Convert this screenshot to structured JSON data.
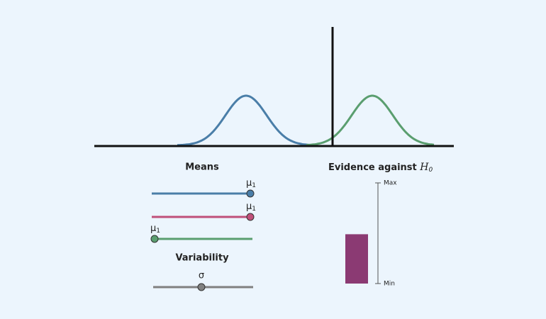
{
  "means_title": "Means",
  "mean_sliders": [
    {
      "symbol": "μ",
      "subscript": "1",
      "color": "#4a7ea8"
    },
    {
      "symbol": "μ",
      "subscript": "1",
      "color": "#c0507a"
    },
    {
      "symbol": "μ",
      "subscript": "1",
      "color": "#5a9e6f"
    }
  ],
  "variability_title": "Variability",
  "variability_slider": {
    "symbol": "σ"
  },
  "evidence": {
    "title": "Evidence against",
    "hypothesis": {
      "symbol": "H",
      "subscript": "0"
    },
    "value": 0.49,
    "color": "#8b3a73",
    "ticks": [
      {
        "value": 0,
        "label": "Min"
      },
      {
        "value": 1,
        "label": "Max"
      }
    ]
  }
}
